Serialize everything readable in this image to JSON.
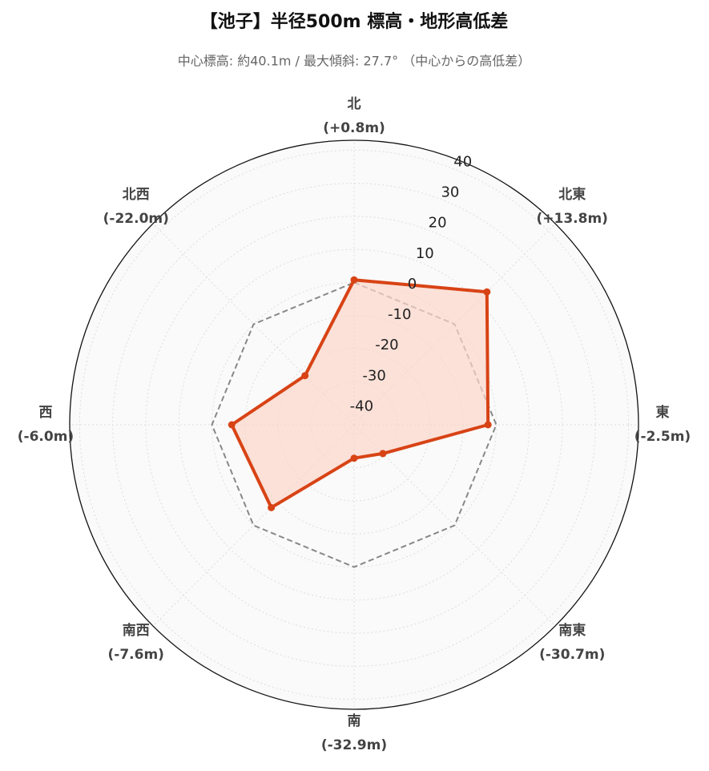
{
  "chart_data": {
    "type": "radar",
    "title": "【池子】半径500m 標高・地形高低差",
    "subtitle": "中心標高: 約40.1m / 最大傾斜: 27.7° （中心からの高低差）",
    "categories": [
      "北",
      "北東",
      "東",
      "南東",
      "南",
      "南西",
      "西",
      "北西"
    ],
    "values": [
      0.8,
      13.8,
      -2.5,
      -30.7,
      -32.9,
      -7.6,
      -6.0,
      -22.0
    ],
    "value_labels": [
      "(+0.8m)",
      "(+13.8m)",
      "(-2.5m)",
      "(-30.7m)",
      "(-32.9m)",
      "(-7.6m)",
      "(-6.0m)",
      "(-22.0m)"
    ],
    "color": "#d84315",
    "fill_color": "#fbd5c9",
    "reference_line": 0,
    "ylim": [
      -43,
      43
    ],
    "yticks": [
      -40,
      -30,
      -20,
      -10,
      0,
      10,
      20,
      30,
      40
    ],
    "grid": true
  }
}
